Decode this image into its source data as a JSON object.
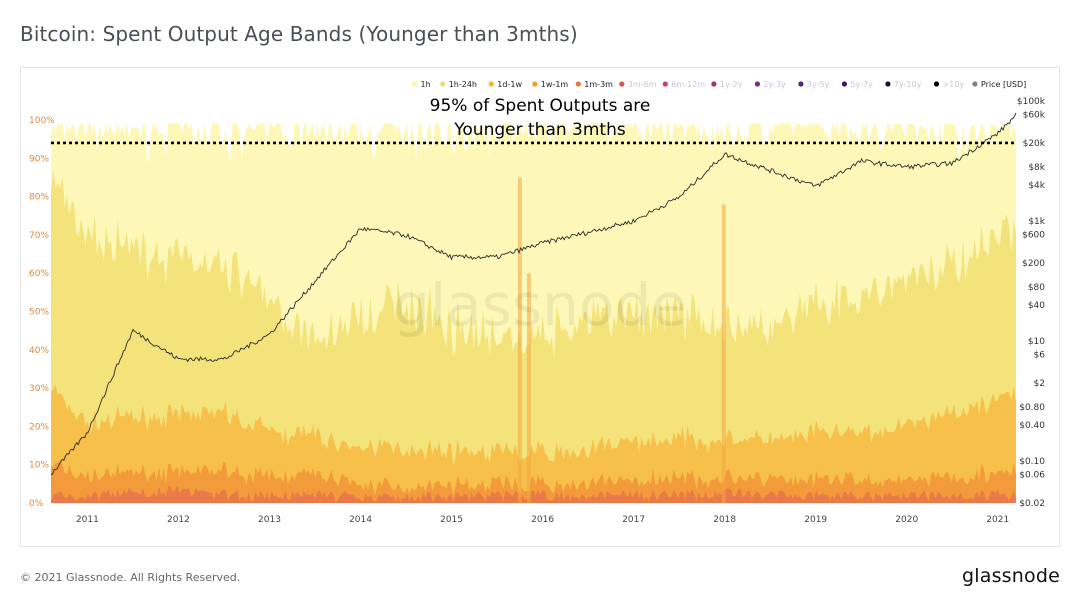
{
  "title": "Bitcoin: Spent Output Age Bands (Younger than 3mths)",
  "footer": {
    "copyright": "© 2021 Glassnode. All Rights Reserved.",
    "logo": "glassnode"
  },
  "watermark": "glassnode",
  "colors": {
    "band_1h": "#fdf8b8",
    "band_1h_24h": "#f4e27a",
    "band_1d_1w": "#f7c04a",
    "band_1w_1m": "#f39a3a",
    "band_1m_3m": "#ea7a4a",
    "price": "#2b2b2b",
    "threshold": "#000000"
  },
  "chart_data": {
    "type": "area",
    "title": "Bitcoin: Spent Output Age Bands (Younger than 3mths)",
    "x": [
      2010.6,
      2011,
      2011.5,
      2012,
      2012.5,
      2013,
      2013.5,
      2014,
      2014.5,
      2015,
      2015.5,
      2016,
      2016.5,
      2017,
      2017.5,
      2018,
      2018.5,
      2019,
      2019.5,
      2020,
      2020.5,
      2021,
      2021.2
    ],
    "x_ticks": [
      "2011",
      "2012",
      "2013",
      "2014",
      "2015",
      "2016",
      "2017",
      "2018",
      "2019",
      "2020",
      "2021"
    ],
    "xlim": [
      2010.6,
      2021.2
    ],
    "ylim": [
      0,
      100
    ],
    "y_ticks_left": [
      "0%",
      "10%",
      "20%",
      "30%",
      "40%",
      "50%",
      "60%",
      "70%",
      "80%",
      "90%",
      "100%"
    ],
    "y_ticks_right": [
      "$0.02",
      "$0.06",
      "$0.10",
      "$0.40",
      "$0.80",
      "$2",
      "$6",
      "$10",
      "$40",
      "$80",
      "$200",
      "$600",
      "$1k",
      "$4k",
      "$8k",
      "$20k",
      "$60k",
      "$100k"
    ],
    "y_right_scale": "log",
    "legend_position": "top-right",
    "legend": [
      {
        "label": "1h",
        "color": "#fdf5a6",
        "active": true
      },
      {
        "label": "1h-24h",
        "color": "#f2dd6c",
        "active": true
      },
      {
        "label": "1d-1w",
        "color": "#f5b730",
        "active": true
      },
      {
        "label": "1w-1m",
        "color": "#f39a2c",
        "active": true
      },
      {
        "label": "1m-3m",
        "color": "#e5773d",
        "active": true
      },
      {
        "label": "3m-6m",
        "color": "#e0524c",
        "active": false
      },
      {
        "label": "6m-12m",
        "color": "#c9406a",
        "active": false
      },
      {
        "label": "1y-2y",
        "color": "#a23478",
        "active": false
      },
      {
        "label": "2y-3y",
        "color": "#7d2a80",
        "active": false
      },
      {
        "label": "3y-5y",
        "color": "#5b1f82",
        "active": false
      },
      {
        "label": "5y-7y",
        "color": "#3f1675",
        "active": false
      },
      {
        "label": "7y-10y",
        "color": "#1d0d40",
        "active": false
      },
      {
        "label": ">10y",
        "color": "#000000",
        "active": false
      },
      {
        "label": "Price [USD]",
        "color": "#808080",
        "active": true
      }
    ],
    "series": [
      {
        "name": "1m-3m",
        "values": [
          2,
          1.5,
          3,
          3,
          2,
          2,
          2,
          1.5,
          1.5,
          1.5,
          2,
          2,
          2,
          2,
          2,
          2.5,
          2,
          2,
          2,
          2,
          2,
          2,
          2
        ]
      },
      {
        "name": "1w-1m",
        "values": [
          8,
          5,
          5,
          5,
          6,
          5,
          5,
          3,
          3,
          3,
          3,
          3,
          3,
          4,
          4,
          4,
          4,
          4,
          4,
          4,
          5,
          6,
          6
        ]
      },
      {
        "name": "1d-1w",
        "values": [
          20,
          14,
          14,
          15,
          15,
          12,
          10,
          10,
          10,
          9,
          8,
          8,
          9,
          10,
          11,
          10,
          10,
          12,
          12,
          14,
          17,
          20,
          20
        ]
      },
      {
        "name": "1h-24h",
        "values": [
          55,
          48,
          45,
          40,
          40,
          33,
          25,
          35,
          38,
          33,
          30,
          30,
          33,
          33,
          33,
          30,
          30,
          33,
          36,
          38,
          38,
          42,
          42
        ]
      },
      {
        "name": "1h",
        "values": [
          13,
          30,
          31,
          35,
          35,
          46,
          56,
          49,
          46,
          52,
          55,
          55,
          52,
          50,
          49,
          52,
          53,
          48,
          44,
          40,
          36,
          28,
          28
        ]
      },
      {
        "name": "Price [USD]",
        "values": [
          0.06,
          0.3,
          15,
          5,
          5,
          13,
          100,
          750,
          580,
          250,
          250,
          430,
          650,
          1000,
          2500,
          13000,
          7000,
          3800,
          10000,
          8000,
          9200,
          29000,
          58000
        ]
      }
    ],
    "annotations": [
      {
        "text": "95% of Spent Outputs are",
        "type": "label"
      },
      {
        "text": "Younger than 3mths",
        "type": "label"
      },
      {
        "value": 94,
        "type": "hline",
        "style": "dotted"
      }
    ]
  }
}
